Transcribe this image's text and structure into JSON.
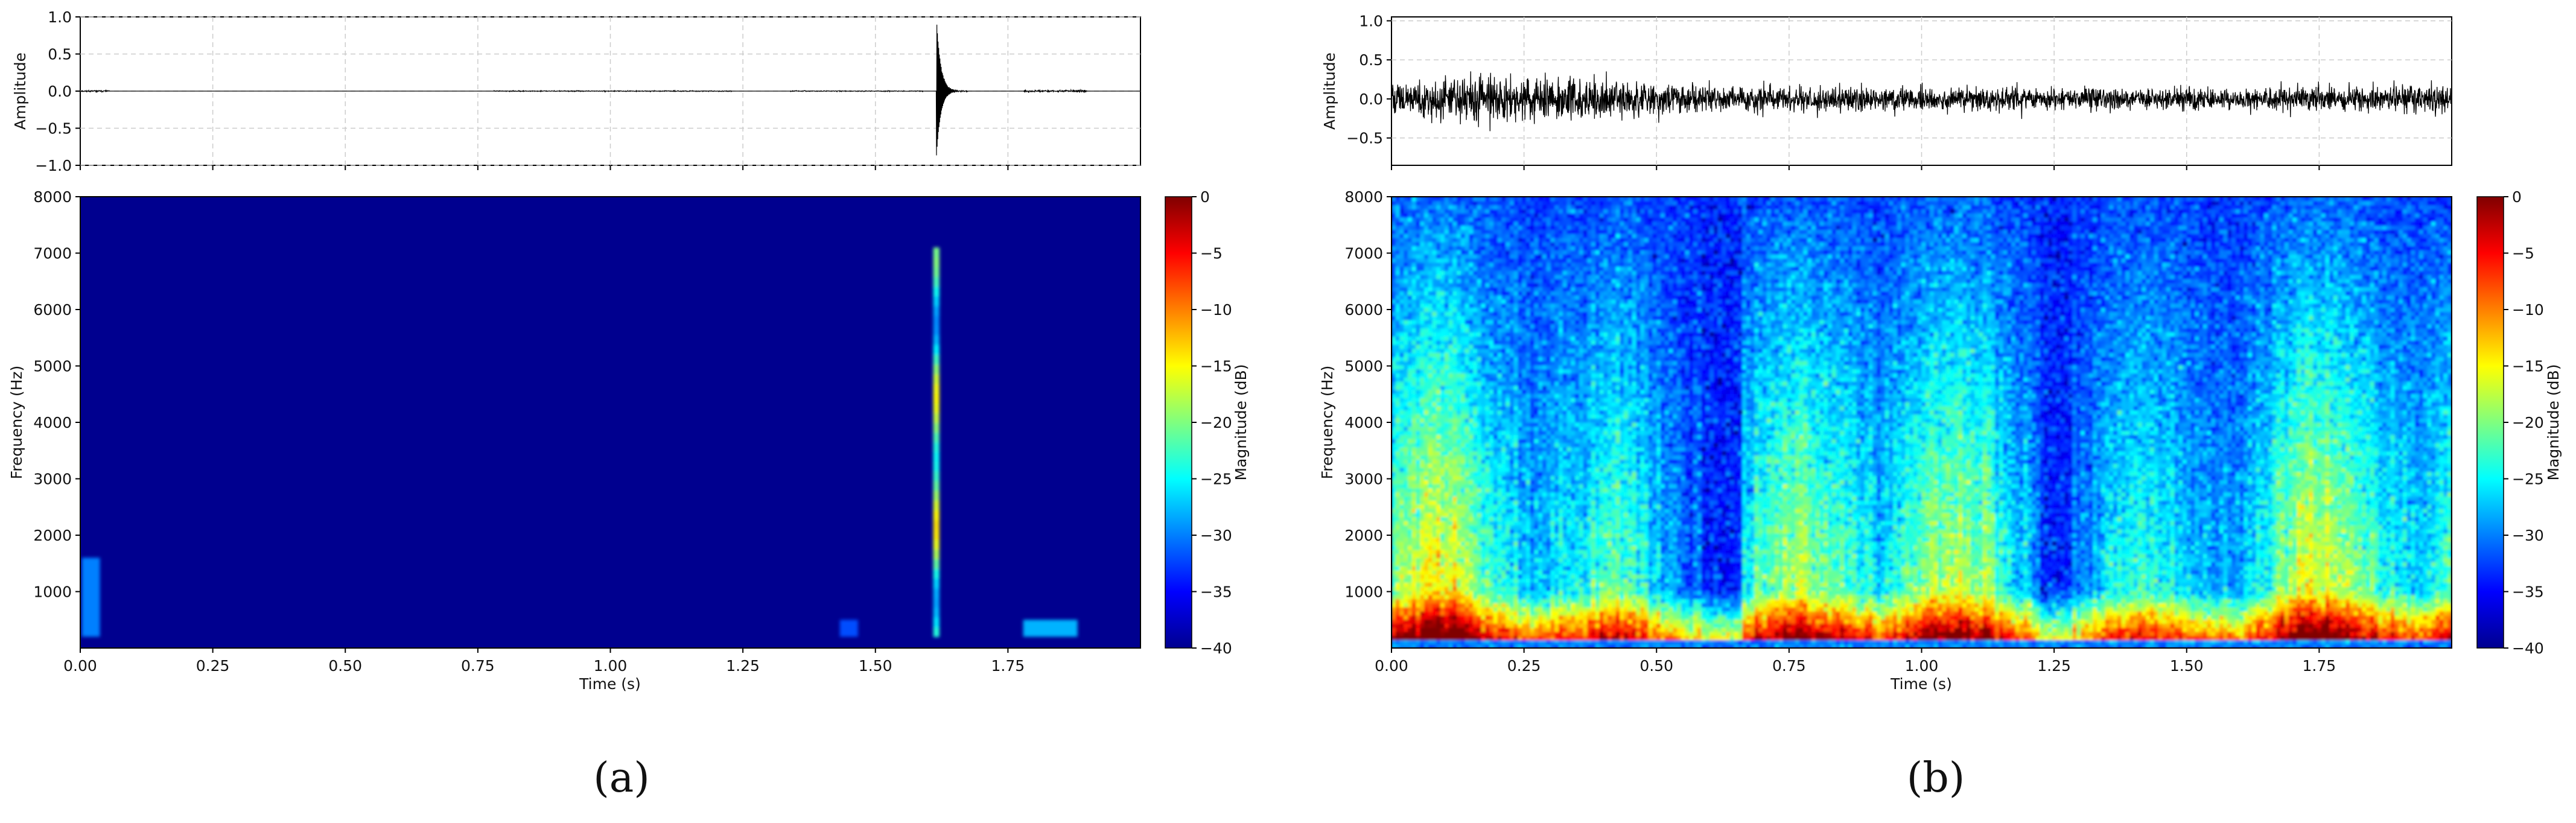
{
  "panels": [
    {
      "label": "(a)",
      "waveform": {
        "ylabel": "Amplitude",
        "yticks": [
          "1.0",
          "0.5",
          "0.0",
          "−0.5",
          "−1.0"
        ],
        "ylim": [
          -1.0,
          1.0
        ],
        "grid": true,
        "bursts": [
          {
            "t": 0.0,
            "duration": 0.055,
            "amp": 0.02
          },
          {
            "t": 0.78,
            "duration": 0.45,
            "amp": 0.012
          },
          {
            "t": 1.34,
            "duration": 0.25,
            "amp": 0.012
          },
          {
            "t": 1.615,
            "duration": 0.06,
            "amp": 1.0,
            "decay": true
          },
          {
            "t": 1.78,
            "duration": 0.12,
            "amp": 0.03
          }
        ]
      },
      "spectrogram": {
        "ylabel": "Frequency (Hz)",
        "xlabel": "Time (s)",
        "yticks": [
          "8000",
          "7000",
          "6000",
          "5000",
          "4000",
          "3000",
          "2000",
          "1000"
        ],
        "xticks": [
          "0.00",
          "0.25",
          "0.50",
          "0.75",
          "1.00",
          "1.25",
          "1.50",
          "1.75"
        ],
        "xlim": [
          0,
          2.0
        ],
        "ylim": [
          0,
          8000
        ],
        "colormap": "jet",
        "colorbar": {
          "label": "Magnitude (dB)",
          "ticks": [
            "0",
            "−5",
            "−10",
            "−15",
            "−20",
            "−25",
            "−30",
            "−35",
            "−40"
          ],
          "range": [
            -40,
            0
          ]
        },
        "events": [
          {
            "t": 1.615,
            "f_low": 200,
            "f_high": 7100,
            "db": -18,
            "type": "transient"
          },
          {
            "t": 0.02,
            "f_low": 200,
            "f_high": 1600,
            "db": -30,
            "type": "patch"
          },
          {
            "t": 1.83,
            "f_low": 200,
            "f_high": 500,
            "db": -28,
            "type": "patch"
          },
          {
            "t": 1.45,
            "f_low": 200,
            "f_high": 500,
            "db": -32,
            "type": "patch"
          }
        ]
      }
    },
    {
      "label": "(b)",
      "waveform": {
        "ylabel": "Amplitude",
        "yticks": [
          "1.0",
          "0.5",
          "0.0",
          "−0.5"
        ],
        "ylim": [
          -0.85,
          1.05
        ],
        "grid": true,
        "noise": {
          "start": 0.0,
          "end": 2.0,
          "amp_envelope": [
            [
              0.0,
              0.45
            ],
            [
              0.1,
              0.8
            ],
            [
              0.3,
              0.75
            ],
            [
              0.6,
              0.45
            ],
            [
              1.0,
              0.4
            ],
            [
              1.5,
              0.35
            ],
            [
              2.0,
              0.5
            ]
          ]
        }
      },
      "spectrogram": {
        "ylabel": "Frequency (Hz)",
        "xlabel": "Time (s)",
        "yticks": [
          "8000",
          "7000",
          "6000",
          "5000",
          "4000",
          "3000",
          "2000",
          "1000"
        ],
        "xticks": [
          "0.00",
          "0.25",
          "0.50",
          "0.75",
          "1.00",
          "1.25",
          "1.50",
          "1.75"
        ],
        "xlim": [
          0,
          2.0
        ],
        "ylim": [
          0,
          8000
        ],
        "colormap": "jet",
        "colorbar": {
          "label": "Magnitude (dB)",
          "ticks": [
            "0",
            "−5",
            "−10",
            "−15",
            "−20",
            "−25",
            "−30",
            "−35",
            "−40"
          ],
          "range": [
            -40,
            0
          ]
        },
        "broadband_noise": true
      }
    }
  ]
}
